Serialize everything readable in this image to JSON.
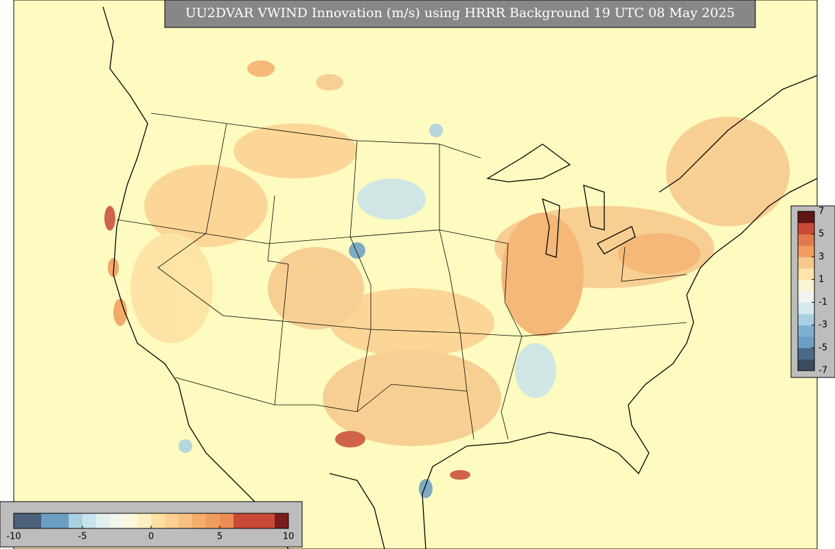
{
  "title": "UU2DVAR VWIND Innovation (m/s) using HRRR Background 19 UTC 08 May 2025",
  "colorbar_right": {
    "ticks": [
      7,
      5,
      3,
      1,
      -1,
      -3,
      -5,
      -7
    ],
    "colors": [
      "#3b4c5e",
      "#4a6a88",
      "#6b9ec2",
      "#7fb0d0",
      "#a9d0e2",
      "#d6e9ef",
      "#f1f3ee",
      "#fcf5d2",
      "#fde4a8",
      "#f7c88c",
      "#ef9c5c",
      "#e07a4e",
      "#c84a36",
      "#5e1616"
    ]
  },
  "colorbar_bottom": {
    "ticks": [
      -10,
      -5,
      0,
      5,
      10
    ],
    "colors": [
      "#4b627a",
      "#4b627a",
      "#6b9ec2",
      "#6b9ec2",
      "#a9d0e2",
      "#c9e3ec",
      "#e2f0f0",
      "#f3f6ec",
      "#fcf8dc",
      "#fdf0c0",
      "#fde1a2",
      "#fbd090",
      "#f7c080",
      "#f4ad6c",
      "#ef9c5c",
      "#eb8c55",
      "#c84a36",
      "#c84a36",
      "#c84a36",
      "#7a1c1c"
    ]
  }
}
